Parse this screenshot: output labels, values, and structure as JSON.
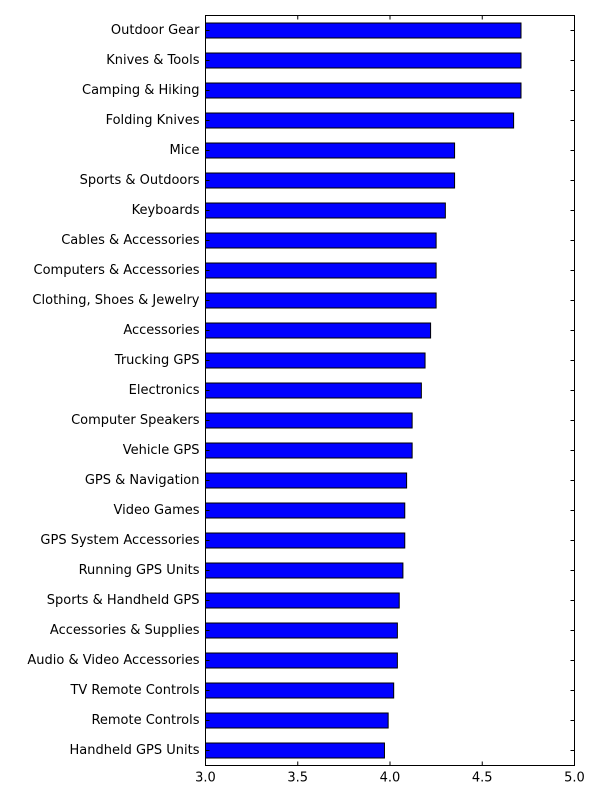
{
  "chart_data": {
    "type": "bar",
    "orientation": "horizontal",
    "title": "",
    "xlabel": "",
    "ylabel": "",
    "xlim": [
      3.0,
      5.0
    ],
    "x_ticks": [
      "3.0",
      "3.5",
      "4.0",
      "4.5",
      "5.0"
    ],
    "bar_color": "#0000ff",
    "edge_color": "#000000",
    "grid": false,
    "categories": [
      "Outdoor Gear",
      "Knives & Tools",
      "Camping & Hiking",
      "Folding Knives",
      "Mice",
      "Sports & Outdoors",
      "Keyboards",
      "Cables & Accessories",
      "Computers & Accessories",
      "Clothing, Shoes & Jewelry",
      "Accessories",
      "Trucking GPS",
      "Electronics",
      "Computer Speakers",
      "Vehicle GPS",
      "GPS & Navigation",
      "Video Games",
      "GPS System Accessories",
      "Running GPS Units",
      "Sports & Handheld GPS",
      "Accessories & Supplies",
      "Audio & Video Accessories",
      "TV Remote Controls",
      "Remote Controls",
      "Handheld GPS Units"
    ],
    "values": [
      4.71,
      4.71,
      4.71,
      4.67,
      4.35,
      4.35,
      4.3,
      4.25,
      4.25,
      4.25,
      4.22,
      4.19,
      4.17,
      4.12,
      4.12,
      4.09,
      4.08,
      4.08,
      4.07,
      4.05,
      4.04,
      4.04,
      4.02,
      3.99,
      3.97
    ]
  }
}
